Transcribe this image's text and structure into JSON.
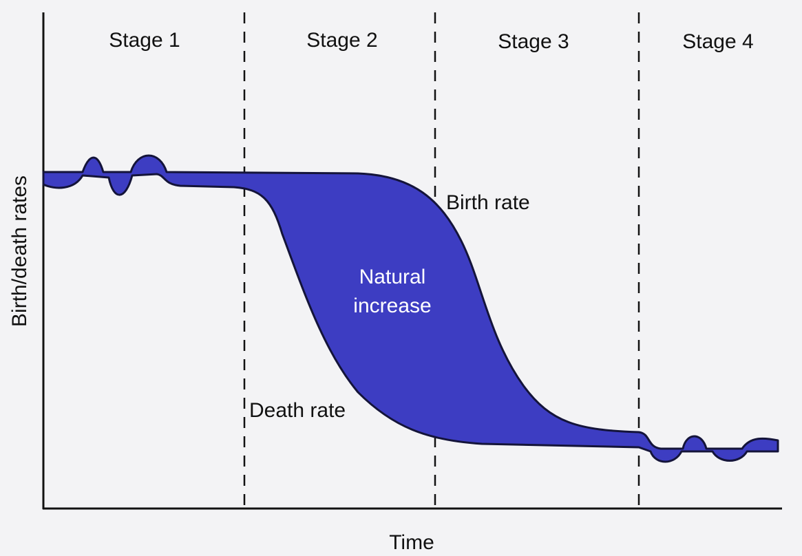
{
  "stages": [
    "Stage 1",
    "Stage 2",
    "Stage 3",
    "Stage 4"
  ],
  "annotations": {
    "birth_rate": "Birth rate",
    "natural_increase": [
      "Natural",
      "increase"
    ],
    "death_rate": "Death rate"
  },
  "axes": {
    "x_label": "Time",
    "y_label": "Birth/death rates"
  }
}
